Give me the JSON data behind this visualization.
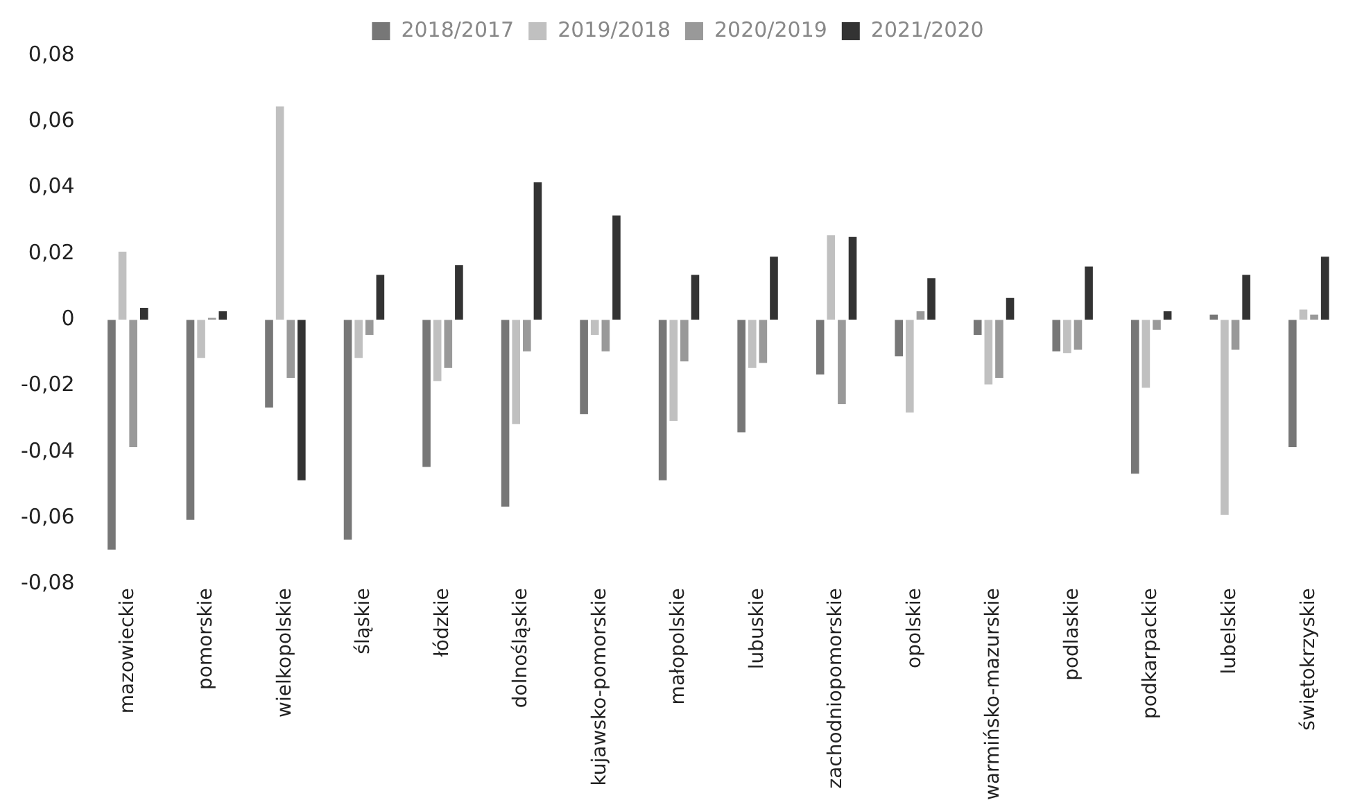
{
  "chart_data": {
    "type": "bar",
    "categories": [
      "mazowieckie",
      "pomorskie",
      "wielkopolskie",
      "śląskie",
      "łódzkie",
      "dolnośląskie",
      "kujawsko-pomorskie",
      "małopolskie",
      "lubuskie",
      "zachodniopomorskie",
      "opolskie",
      "warmińsko-mazurskie",
      "podlaskie",
      "podkarpackie",
      "lubelskie",
      "świętokrzyskie"
    ],
    "series": [
      {
        "name": "2018/2017",
        "color": "#777777",
        "values": [
          -0.07,
          -0.061,
          -0.027,
          -0.067,
          -0.045,
          -0.057,
          -0.029,
          -0.049,
          -0.0345,
          -0.017,
          -0.0115,
          -0.005,
          -0.01,
          -0.047,
          0.002,
          -0.039
        ]
      },
      {
        "name": "2019/2018",
        "color": "#c0c0c0",
        "values": [
          0.021,
          -0.012,
          0.065,
          -0.012,
          -0.019,
          -0.032,
          -0.005,
          -0.031,
          -0.015,
          0.026,
          -0.0285,
          -0.02,
          -0.0105,
          -0.021,
          -0.0595,
          0.0035
        ]
      },
      {
        "name": "2020/2019",
        "color": "#999999",
        "values": [
          -0.039,
          0.001,
          -0.018,
          -0.005,
          -0.015,
          -0.01,
          -0.01,
          -0.013,
          -0.0135,
          -0.026,
          0.003,
          -0.018,
          -0.0095,
          -0.0035,
          -0.0095,
          0.002
        ]
      },
      {
        "name": "2021/2020",
        "color": "#333333",
        "values": [
          0.004,
          0.003,
          -0.049,
          0.014,
          0.017,
          0.042,
          0.032,
          0.014,
          0.0195,
          0.0255,
          0.013,
          0.007,
          0.0165,
          0.003,
          0.014,
          0.0195
        ]
      }
    ],
    "ylim": [
      -0.08,
      0.08
    ],
    "yticks": [
      {
        "value": -0.08,
        "label": "-0,08"
      },
      {
        "value": -0.06,
        "label": "-0,06"
      },
      {
        "value": -0.04,
        "label": "-0,04"
      },
      {
        "value": -0.02,
        "label": "-0,02"
      },
      {
        "value": 0,
        "label": "0"
      },
      {
        "value": 0.02,
        "label": "0,02"
      },
      {
        "value": 0.04,
        "label": "0,04"
      },
      {
        "value": 0.06,
        "label": "0,06"
      },
      {
        "value": 0.08,
        "label": "0,08"
      }
    ],
    "grid": false,
    "legend": "top"
  }
}
